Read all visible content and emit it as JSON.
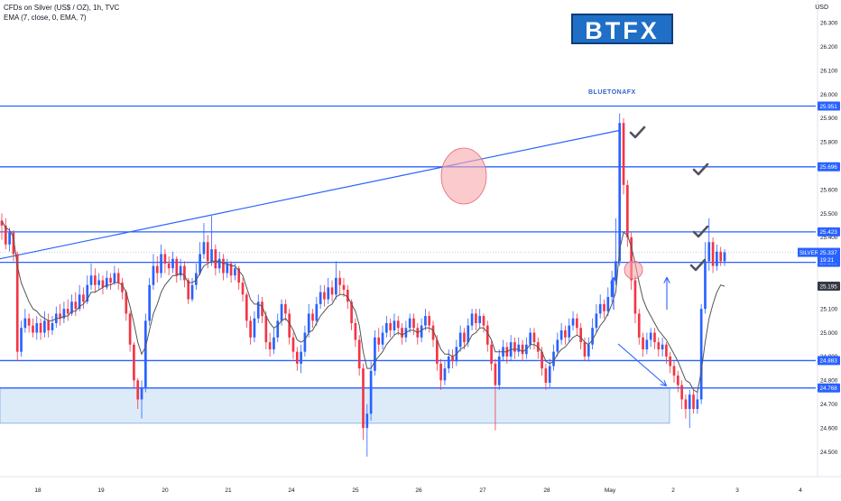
{
  "header": {
    "title": "CFDs on Silver (US$ / OZ), 1h, TVC",
    "indicator": "EMA (7, close, 0, EMA, 7)",
    "currency": "USD"
  },
  "brand": {
    "logo_text": "BTFX",
    "sub_logo_text": "BLUETONAFX"
  },
  "colors": {
    "up": "#2962ff",
    "down": "#f23645",
    "level_line": "#2962ff",
    "ema": "#555555",
    "zone_fill": "#cfe2f7",
    "circle_fill": "#f7a6ab",
    "check": "#50535e"
  },
  "chart_data": {
    "type": "candlestick",
    "symbol": "SILVER",
    "x_tick_labels": [
      "18",
      "19",
      "20",
      "21",
      "24",
      "25",
      "26",
      "27",
      "28",
      "May",
      "2",
      "3",
      "4"
    ],
    "y_tick_labels": [
      "26.300",
      "26.200",
      "26.100",
      "26.000",
      "25.900",
      "25.800",
      "25.700",
      "25.600",
      "25.500",
      "25.400",
      "25.100",
      "25.000",
      "24.900",
      "24.800",
      "24.700",
      "24.600",
      "24.500"
    ],
    "ylim": [
      24.47,
      26.36
    ],
    "levels": [
      {
        "value": 25.951,
        "label": "25.951"
      },
      {
        "value": 25.696,
        "label": "25.696"
      },
      {
        "value": 25.423,
        "label": "25.423"
      },
      {
        "value": 25.295,
        "label": "25.295"
      },
      {
        "value": 24.883,
        "label": "24.883"
      },
      {
        "value": 24.768,
        "label": "24.768"
      }
    ],
    "price_badges": {
      "symbol": "SILVER",
      "last_price": "25.337",
      "countdown": "19:21",
      "ema_value": "25.195"
    },
    "candles": [
      [
        25.47,
        25.45,
        25.5,
        25.39
      ],
      [
        25.45,
        25.37,
        25.48,
        25.35
      ],
      [
        25.37,
        25.42,
        25.44,
        25.34
      ],
      [
        25.42,
        25.33,
        25.43,
        25.3
      ],
      [
        25.33,
        24.92,
        25.34,
        24.88
      ],
      [
        24.92,
        25.02,
        25.05,
        24.9
      ],
      [
        25.02,
        25.06,
        25.1,
        25.0
      ],
      [
        25.06,
        25.03,
        25.08,
        25.0
      ],
      [
        25.03,
        25.0,
        25.06,
        24.98
      ],
      [
        25.0,
        25.04,
        25.07,
        24.97
      ],
      [
        25.04,
        25.0,
        25.06,
        24.97
      ],
      [
        25.0,
        25.05,
        25.09,
        24.98
      ],
      [
        25.05,
        25.01,
        25.08,
        24.98
      ],
      [
        25.01,
        25.04,
        25.07,
        24.99
      ],
      [
        25.04,
        25.08,
        25.11,
        25.02
      ],
      [
        25.08,
        25.06,
        25.12,
        25.03
      ],
      [
        25.06,
        25.1,
        25.13,
        25.04
      ],
      [
        25.1,
        25.08,
        25.14,
        25.05
      ],
      [
        25.08,
        25.13,
        25.16,
        25.07
      ],
      [
        25.13,
        25.1,
        25.17,
        25.07
      ],
      [
        25.1,
        25.16,
        25.2,
        25.09
      ],
      [
        25.16,
        25.13,
        25.19,
        25.1
      ],
      [
        25.13,
        25.2,
        25.24,
        25.12
      ],
      [
        25.2,
        25.24,
        25.29,
        25.18
      ],
      [
        25.24,
        25.2,
        25.27,
        25.17
      ],
      [
        25.2,
        25.22,
        25.25,
        25.18
      ],
      [
        25.22,
        25.19,
        25.24,
        25.16
      ],
      [
        25.19,
        25.23,
        25.26,
        25.18
      ],
      [
        25.23,
        25.21,
        25.25,
        25.18
      ],
      [
        25.21,
        25.25,
        25.28,
        25.2
      ],
      [
        25.25,
        25.21,
        25.27,
        25.18
      ],
      [
        25.21,
        25.17,
        25.23,
        25.14
      ],
      [
        25.17,
        25.08,
        25.18,
        25.05
      ],
      [
        25.08,
        24.95,
        25.09,
        24.92
      ],
      [
        24.95,
        24.8,
        24.96,
        24.77
      ],
      [
        24.8,
        24.72,
        24.81,
        24.68
      ],
      [
        24.72,
        24.77,
        24.8,
        24.64
      ],
      [
        24.77,
        25.05,
        25.08,
        24.75
      ],
      [
        25.05,
        25.2,
        25.23,
        25.03
      ],
      [
        25.2,
        25.28,
        25.33,
        25.18
      ],
      [
        25.28,
        25.25,
        25.32,
        25.21
      ],
      [
        25.25,
        25.33,
        25.37,
        25.23
      ],
      [
        25.33,
        25.29,
        25.35,
        25.25
      ],
      [
        25.29,
        25.27,
        25.32,
        25.24
      ],
      [
        25.27,
        25.31,
        25.34,
        25.25
      ],
      [
        25.31,
        25.24,
        25.32,
        25.21
      ],
      [
        25.24,
        25.28,
        25.31,
        25.22
      ],
      [
        25.28,
        25.22,
        25.3,
        25.19
      ],
      [
        25.22,
        25.14,
        25.23,
        25.12
      ],
      [
        25.14,
        25.2,
        25.23,
        25.13
      ],
      [
        25.2,
        25.25,
        25.29,
        25.18
      ],
      [
        25.25,
        25.33,
        25.38,
        25.24
      ],
      [
        25.33,
        25.38,
        25.46,
        25.31
      ],
      [
        25.38,
        25.3,
        25.41,
        25.27
      ],
      [
        25.3,
        25.35,
        25.49,
        25.28
      ],
      [
        25.35,
        25.27,
        25.37,
        25.24
      ],
      [
        25.27,
        25.31,
        25.34,
        25.25
      ],
      [
        25.31,
        25.25,
        25.33,
        25.22
      ],
      [
        25.25,
        25.29,
        25.31,
        25.23
      ],
      [
        25.29,
        25.24,
        25.3,
        25.21
      ],
      [
        25.24,
        25.27,
        25.29,
        25.22
      ],
      [
        25.27,
        25.21,
        25.28,
        25.18
      ],
      [
        25.21,
        25.16,
        25.23,
        25.13
      ],
      [
        25.16,
        25.05,
        25.17,
        25.02
      ],
      [
        25.05,
        24.98,
        25.07,
        24.95
      ],
      [
        24.98,
        25.06,
        25.09,
        24.96
      ],
      [
        25.06,
        25.13,
        25.16,
        25.04
      ],
      [
        25.13,
        25.07,
        25.15,
        25.04
      ],
      [
        25.07,
        24.96,
        25.09,
        24.93
      ],
      [
        24.96,
        24.93,
        25.0,
        24.9
      ],
      [
        24.93,
        24.98,
        25.02,
        24.91
      ],
      [
        24.98,
        25.05,
        25.08,
        24.96
      ],
      [
        25.05,
        25.12,
        25.14,
        25.03
      ],
      [
        25.12,
        25.08,
        25.14,
        25.05
      ],
      [
        25.08,
        24.98,
        25.1,
        24.95
      ],
      [
        24.98,
        24.92,
        25.0,
        24.89
      ],
      [
        24.92,
        24.87,
        24.94,
        24.84
      ],
      [
        24.87,
        24.92,
        24.95,
        24.83
      ],
      [
        24.92,
        25.0,
        25.03,
        24.9
      ],
      [
        25.0,
        25.08,
        25.12,
        24.98
      ],
      [
        25.08,
        25.05,
        25.1,
        25.02
      ],
      [
        25.05,
        25.12,
        25.15,
        25.03
      ],
      [
        25.12,
        25.17,
        25.2,
        25.1
      ],
      [
        25.17,
        25.14,
        25.2,
        25.11
      ],
      [
        25.14,
        25.19,
        25.23,
        25.12
      ],
      [
        25.19,
        25.16,
        25.22,
        25.13
      ],
      [
        25.16,
        25.23,
        25.3,
        25.14
      ],
      [
        25.23,
        25.2,
        25.26,
        25.16
      ],
      [
        25.2,
        25.18,
        25.23,
        25.15
      ],
      [
        25.18,
        25.13,
        25.2,
        25.1
      ],
      [
        25.13,
        25.04,
        25.14,
        25.01
      ],
      [
        25.04,
        24.97,
        25.06,
        24.94
      ],
      [
        24.97,
        24.85,
        24.99,
        24.82
      ],
      [
        24.85,
        24.6,
        24.87,
        24.55
      ],
      [
        24.6,
        24.66,
        24.7,
        24.48
      ],
      [
        24.66,
        24.84,
        24.88,
        24.63
      ],
      [
        24.84,
        24.98,
        25.01,
        24.82
      ],
      [
        24.98,
        24.95,
        25.02,
        24.92
      ],
      [
        24.95,
        25.0,
        25.03,
        24.93
      ],
      [
        25.0,
        25.04,
        25.07,
        24.98
      ],
      [
        25.04,
        25.01,
        25.06,
        24.98
      ],
      [
        25.01,
        25.05,
        25.08,
        24.99
      ],
      [
        25.05,
        25.02,
        25.07,
        24.99
      ],
      [
        25.02,
        24.98,
        25.04,
        24.95
      ],
      [
        24.98,
        25.02,
        25.05,
        24.96
      ],
      [
        25.02,
        25.06,
        25.08,
        25.0
      ],
      [
        25.06,
        25.02,
        25.08,
        24.99
      ],
      [
        25.02,
        24.98,
        25.04,
        24.95
      ],
      [
        24.98,
        25.03,
        25.06,
        24.96
      ],
      [
        25.03,
        25.07,
        25.1,
        25.01
      ],
      [
        25.07,
        25.03,
        25.09,
        25.0
      ],
      [
        25.03,
        24.97,
        25.05,
        24.94
      ],
      [
        24.97,
        24.87,
        24.99,
        24.84
      ],
      [
        24.87,
        24.8,
        24.89,
        24.76
      ],
      [
        24.8,
        24.85,
        24.88,
        24.78
      ],
      [
        24.85,
        24.9,
        24.93,
        24.83
      ],
      [
        24.9,
        24.88,
        24.93,
        24.85
      ],
      [
        24.88,
        24.94,
        24.97,
        24.86
      ],
      [
        24.94,
        25.0,
        25.03,
        24.92
      ],
      [
        25.0,
        24.96,
        25.02,
        24.93
      ],
      [
        24.96,
        25.03,
        25.06,
        24.94
      ],
      [
        25.03,
        25.08,
        25.1,
        25.01
      ],
      [
        25.08,
        25.04,
        25.1,
        25.01
      ],
      [
        25.04,
        25.07,
        25.1,
        25.02
      ],
      [
        25.07,
        25.03,
        25.08,
        25.0
      ],
      [
        25.03,
        24.95,
        25.05,
        24.92
      ],
      [
        24.95,
        24.87,
        24.97,
        24.84
      ],
      [
        24.87,
        24.78,
        24.89,
        24.59
      ],
      [
        24.78,
        24.9,
        24.93,
        24.76
      ],
      [
        24.9,
        24.94,
        24.97,
        24.88
      ],
      [
        24.94,
        24.9,
        24.96,
        24.87
      ],
      [
        24.9,
        24.96,
        24.99,
        24.88
      ],
      [
        24.96,
        24.92,
        24.98,
        24.89
      ],
      [
        24.92,
        24.95,
        24.98,
        24.9
      ],
      [
        24.95,
        24.91,
        24.97,
        24.88
      ],
      [
        24.91,
        24.95,
        24.98,
        24.89
      ],
      [
        24.95,
        25.0,
        25.02,
        24.93
      ],
      [
        25.0,
        24.96,
        25.02,
        24.93
      ],
      [
        24.96,
        24.92,
        24.98,
        24.89
      ],
      [
        24.92,
        24.85,
        24.94,
        24.82
      ],
      [
        24.85,
        24.79,
        24.87,
        24.76
      ],
      [
        24.79,
        24.86,
        24.89,
        24.77
      ],
      [
        24.86,
        24.92,
        24.95,
        24.84
      ],
      [
        24.92,
        24.97,
        25.0,
        24.9
      ],
      [
        24.97,
        25.01,
        25.04,
        24.95
      ],
      [
        25.01,
        24.98,
        25.03,
        24.95
      ],
      [
        24.98,
        25.03,
        25.06,
        24.96
      ],
      [
        25.03,
        25.06,
        25.09,
        25.01
      ],
      [
        25.06,
        25.02,
        25.08,
        24.99
      ],
      [
        25.02,
        24.96,
        25.04,
        24.93
      ],
      [
        24.96,
        24.9,
        24.98,
        24.88
      ],
      [
        24.9,
        24.95,
        24.98,
        24.88
      ],
      [
        24.95,
        25.02,
        25.06,
        24.93
      ],
      [
        25.02,
        25.08,
        25.12,
        25.0
      ],
      [
        25.08,
        25.12,
        25.16,
        25.06
      ],
      [
        25.12,
        25.09,
        25.14,
        25.06
      ],
      [
        25.09,
        25.15,
        25.19,
        25.07
      ],
      [
        25.15,
        25.22,
        25.26,
        25.13
      ],
      [
        25.22,
        25.3,
        25.48,
        25.2
      ],
      [
        25.3,
        25.88,
        25.92,
        25.28
      ],
      [
        25.88,
        25.62,
        25.9,
        25.58
      ],
      [
        25.62,
        25.4,
        25.64,
        25.36
      ],
      [
        25.4,
        25.22,
        25.42,
        25.18
      ],
      [
        25.22,
        25.08,
        25.24,
        25.04
      ],
      [
        25.08,
        24.98,
        25.1,
        24.95
      ],
      [
        24.98,
        24.93,
        25.0,
        24.9
      ],
      [
        24.93,
        24.97,
        25.0,
        24.91
      ],
      [
        24.97,
        25.0,
        25.02,
        24.94
      ],
      [
        25.0,
        24.96,
        25.02,
        24.93
      ],
      [
        24.96,
        24.93,
        24.98,
        24.9
      ],
      [
        24.93,
        24.95,
        24.98,
        24.9
      ],
      [
        24.95,
        24.9,
        24.96,
        24.87
      ],
      [
        24.9,
        24.86,
        24.92,
        24.83
      ],
      [
        24.86,
        24.82,
        24.88,
        24.79
      ],
      [
        24.82,
        24.78,
        24.84,
        24.75
      ],
      [
        24.78,
        24.72,
        24.8,
        24.68
      ],
      [
        24.72,
        24.68,
        24.74,
        24.64
      ],
      [
        24.68,
        24.74,
        24.76,
        24.6
      ],
      [
        24.74,
        24.68,
        24.76,
        24.66
      ],
      [
        24.68,
        24.72,
        24.75,
        24.66
      ],
      [
        24.72,
        25.1,
        25.12,
        24.7
      ],
      [
        25.1,
        25.3,
        25.38,
        25.08
      ],
      [
        25.3,
        25.38,
        25.48,
        25.26
      ],
      [
        25.38,
        25.28,
        25.4,
        25.25
      ],
      [
        25.28,
        25.34,
        25.37,
        25.26
      ],
      [
        25.34,
        25.3,
        25.36,
        25.28
      ],
      [
        25.3,
        25.337,
        25.35,
        25.28
      ]
    ],
    "ema": [
      25.47,
      25.44,
      25.43,
      25.4,
      25.28,
      25.21,
      25.17,
      25.13,
      25.1,
      25.09,
      25.07,
      25.06,
      25.05,
      25.05,
      25.06,
      25.06,
      25.07,
      25.07,
      25.09,
      25.09,
      25.11,
      25.12,
      25.14,
      25.17,
      25.17,
      25.18,
      25.19,
      25.2,
      25.2,
      25.21,
      25.21,
      25.2,
      25.17,
      25.11,
      25.04,
      24.96,
      24.91,
      24.94,
      25.01,
      25.08,
      25.12,
      25.17,
      25.2,
      25.22,
      25.24,
      25.24,
      25.25,
      25.24,
      25.21,
      25.21,
      25.22,
      25.25,
      25.28,
      25.29,
      25.3,
      25.3,
      25.3,
      25.29,
      25.29,
      25.28,
      25.28,
      25.26,
      25.24,
      25.19,
      25.14,
      25.12,
      25.12,
      25.11,
      25.07,
      25.04,
      25.02,
      25.03,
      25.05,
      25.06,
      25.04,
      25.01,
      24.97,
      24.96,
      24.97,
      25.0,
      25.01,
      25.04,
      25.07,
      25.09,
      25.11,
      25.12,
      25.15,
      25.16,
      25.16,
      25.15,
      25.12,
      25.09,
      25.03,
      24.92,
      24.85,
      24.85,
      24.88,
      24.9,
      24.92,
      24.95,
      24.97,
      24.99,
      25.0,
      24.99,
      25.0,
      25.01,
      25.01,
      25.0,
      25.01,
      25.02,
      25.02,
      25.01,
      24.97,
      24.93,
      24.91,
      24.91,
      24.9,
      24.91,
      24.93,
      24.94,
      24.96,
      24.99,
      25.0,
      25.02,
      25.02,
      25.0,
      24.97,
      24.92,
      24.92,
      24.92,
      24.92,
      24.93,
      24.93,
      24.93,
      24.92,
      24.93,
      24.95,
      24.95,
      24.94,
      24.92,
      24.88,
      24.87,
      24.88,
      24.91,
      24.93,
      24.94,
      24.96,
      24.98,
      24.99,
      24.98,
      24.96,
      24.95,
      24.97,
      25.0,
      25.03,
      25.05,
      25.08,
      25.12,
      25.17,
      25.35,
      25.42,
      25.41,
      25.36,
      25.29,
      25.21,
      25.14,
      25.1,
      25.07,
      25.04,
      25.01,
      24.99,
      24.97,
      24.94,
      24.91,
      24.88,
      24.84,
      24.8,
      24.79,
      24.76,
      24.75,
      24.84,
      24.96,
      25.06,
      25.12,
      25.17,
      25.2,
      25.195
    ]
  }
}
